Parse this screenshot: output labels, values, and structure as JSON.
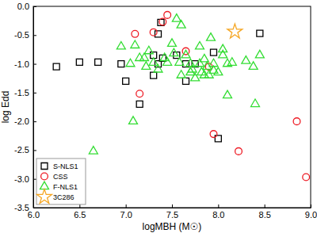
{
  "chart_data": {
    "type": "scatter",
    "x_label": "logMBH (M☉)",
    "y_label": "log Edd",
    "xlim": [
      6.0,
      9.0
    ],
    "ylim": [
      -3.5,
      0.0
    ],
    "xticks": [
      {
        "value": 6,
        "label": "6.0"
      },
      {
        "value": 6.5,
        "label": "6.5"
      },
      {
        "value": 7,
        "label": "7.0"
      },
      {
        "value": 7.5,
        "label": "7.5"
      },
      {
        "value": 8,
        "label": "8.0"
      },
      {
        "value": 8.5,
        "label": "8.5"
      },
      {
        "value": 9,
        "label": "9.0"
      }
    ],
    "yticks": [
      {
        "value": -3.5,
        "label": "-3.5"
      },
      {
        "value": -3,
        "label": "-3.0"
      },
      {
        "value": -2.5,
        "label": "-2.5"
      },
      {
        "value": -2,
        "label": "-2.0"
      },
      {
        "value": -1.5,
        "label": "-1.5"
      },
      {
        "value": -1,
        "label": "-1.0"
      },
      {
        "value": -0.5,
        "label": "-0.5"
      },
      {
        "value": 0,
        "label": "0.0"
      }
    ],
    "grid": false,
    "legend": "lower left",
    "series": [
      {
        "name": "S-NLS1",
        "color": "#000000",
        "marker": "square",
        "x": [
          6.25,
          6.5,
          6.7,
          6.95,
          7.0,
          7.15,
          7.3,
          7.35,
          7.38,
          7.4,
          7.35,
          7.3,
          7.55,
          7.65,
          7.75,
          7.65,
          7.95,
          8.0,
          8.45
        ],
        "values": [
          -1.05,
          -0.97,
          -0.97,
          -1.0,
          -1.3,
          -1.7,
          -0.85,
          -0.48,
          -0.28,
          -0.9,
          -1.0,
          -1.2,
          -0.85,
          -1.0,
          -1.0,
          -1.3,
          -0.8,
          -2.3,
          -0.47
        ]
      },
      {
        "name": "CSS",
        "color": "#ee1c25",
        "marker": "circle",
        "x": [
          7.1,
          7.15,
          7.3,
          7.4,
          7.45,
          7.65,
          7.9,
          7.95,
          8.22,
          8.85,
          8.95
        ],
        "values": [
          -0.48,
          -1.52,
          -0.45,
          -0.27,
          -0.15,
          -0.78,
          -1.05,
          -2.22,
          -2.52,
          -2.0,
          -2.97
        ]
      },
      {
        "name": "F-NLS1",
        "color": "#33dd33",
        "marker": "triangle",
        "x": [
          6.65,
          6.95,
          7.05,
          7.08,
          7.1,
          7.15,
          7.2,
          7.22,
          7.25,
          7.3,
          7.35,
          7.42,
          7.45,
          7.5,
          7.52,
          7.55,
          7.58,
          7.6,
          7.6,
          7.65,
          7.7,
          7.7,
          7.72,
          7.75,
          7.8,
          7.8,
          7.82,
          7.85,
          7.85,
          7.88,
          7.9,
          7.92,
          7.95,
          7.95,
          8.0,
          8.05,
          8.05,
          8.1,
          8.1,
          8.15,
          8.3,
          8.38,
          8.4,
          8.45
        ],
        "values": [
          -2.52,
          -0.7,
          -1.0,
          -2.0,
          -0.68,
          -0.9,
          -0.9,
          -1.05,
          -0.78,
          -0.98,
          -1.1,
          -0.9,
          -0.98,
          -0.65,
          -0.82,
          -0.22,
          -0.98,
          -1.2,
          -0.33,
          -0.85,
          -1.0,
          -1.15,
          -1.1,
          -1.25,
          -1.0,
          -0.7,
          -1.15,
          -0.92,
          -1.2,
          -1.05,
          -1.2,
          -0.55,
          -1.0,
          -1.12,
          -1.15,
          -0.85,
          -0.75,
          -1.0,
          -1.55,
          -0.98,
          -0.95,
          -1.05,
          -1.7,
          -0.85
        ]
      },
      {
        "name": "3C286",
        "color": "#f5a623",
        "marker": "star",
        "x": [
          8.18
        ],
        "values": [
          -0.44
        ]
      }
    ]
  }
}
